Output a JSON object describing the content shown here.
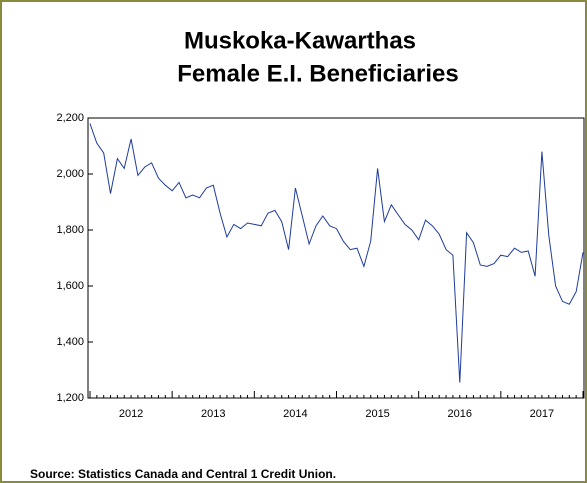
{
  "chart_data": {
    "type": "line",
    "title": [
      "Muskoka-Kawarthas",
      "Female E.I. Beneficiaries"
    ],
    "source": "Source: Statistics Canada and Central 1 Credit Union.",
    "categories": [
      null,
      null,
      null,
      null,
      null,
      null,
      "2012",
      null,
      null,
      null,
      null,
      null,
      null,
      null,
      null,
      null,
      null,
      null,
      "2013",
      null,
      null,
      null,
      null,
      null,
      null,
      null,
      null,
      null,
      null,
      null,
      "2014",
      null,
      null,
      null,
      null,
      null,
      null,
      null,
      null,
      null,
      null,
      null,
      "2015",
      null,
      null,
      null,
      null,
      null,
      null,
      null,
      null,
      null,
      null,
      null,
      "2016",
      null,
      null,
      null,
      null,
      null,
      null,
      null,
      null,
      null,
      null,
      null,
      "2017",
      null,
      null,
      null,
      null,
      null,
      null
    ],
    "series": [
      {
        "name": "Female E.I. Beneficiaries",
        "color": "#1f3c9c",
        "values": [
          2180,
          2110,
          2075,
          1930,
          2055,
          2020,
          2125,
          1995,
          2025,
          2040,
          1985,
          1960,
          1940,
          1970,
          1915,
          1925,
          1915,
          1950,
          1960,
          1860,
          1775,
          1820,
          1805,
          1825,
          1820,
          1815,
          1860,
          1870,
          1830,
          1730,
          1950,
          1850,
          1750,
          1815,
          1850,
          1815,
          1805,
          1760,
          1730,
          1735,
          1670,
          1760,
          2020,
          1830,
          1890,
          1855,
          1820,
          1800,
          1765,
          1835,
          1815,
          1785,
          1730,
          1710,
          1255,
          1790,
          1755,
          1675,
          1670,
          1680,
          1710,
          1705,
          1735,
          1720,
          1725,
          1635,
          2080,
          1780,
          1600,
          1545,
          1535,
          1580,
          1720
        ]
      }
    ],
    "ylim": [
      1200,
      2200
    ],
    "yticks": [
      {
        "value": 1200,
        "label": "1,200"
      },
      {
        "value": 1400,
        "label": "1,400"
      },
      {
        "value": 1600,
        "label": "1,600"
      },
      {
        "value": 1800,
        "label": "1,800"
      },
      {
        "value": 2000,
        "label": "2,000"
      },
      {
        "value": 2200,
        "label": "2,200"
      }
    ],
    "grid": false
  }
}
